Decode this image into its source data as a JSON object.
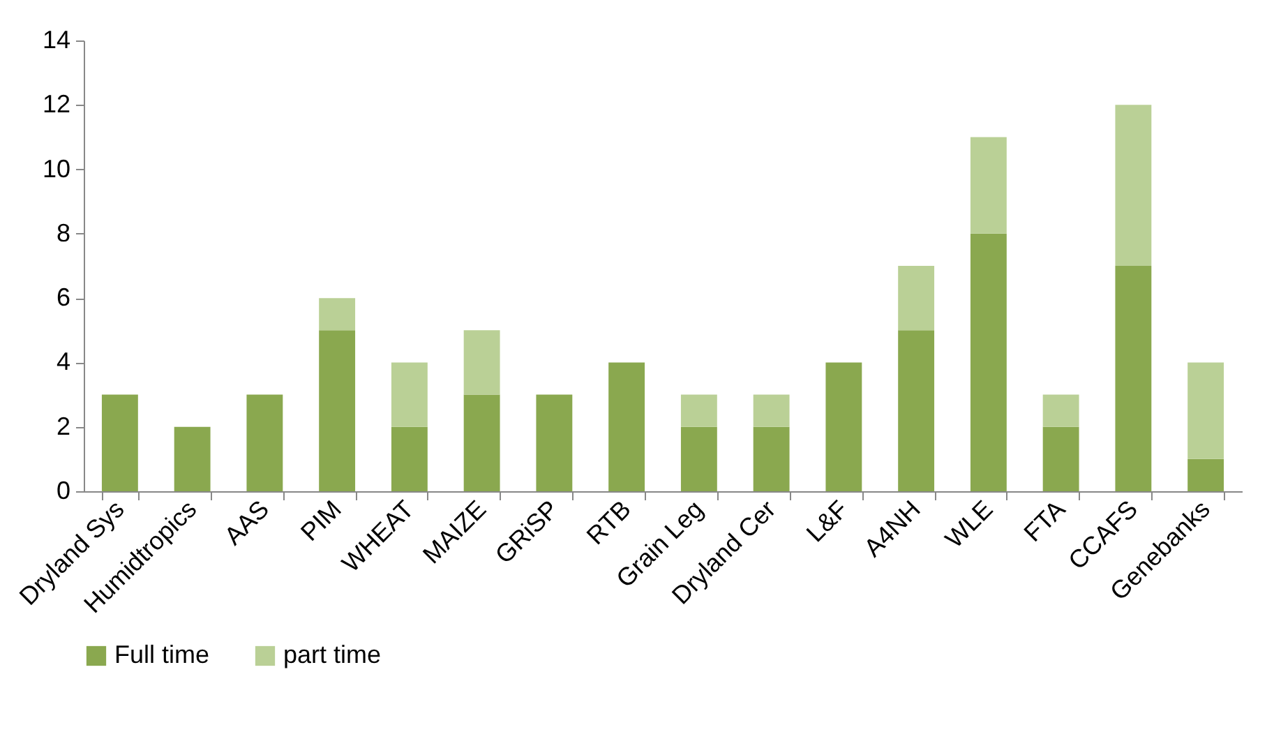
{
  "chart_data": {
    "type": "bar",
    "stacked": true,
    "categories": [
      "Dryland Sys",
      "Humidtropics",
      "AAS",
      "PIM",
      "WHEAT",
      "MAIZE",
      "GRiSP",
      "RTB",
      "Grain Leg",
      "Dryland Cer",
      "L&F",
      "A4NH",
      "WLE",
      "FTA",
      "CCAFS",
      "Genebanks"
    ],
    "series": [
      {
        "name": "Full time",
        "color": "#8aa84f",
        "values": [
          3,
          2,
          3,
          5,
          2,
          3,
          3,
          4,
          2,
          2,
          4,
          5,
          8,
          2,
          7,
          1
        ]
      },
      {
        "name": "part time",
        "color": "#bad096",
        "values": [
          0,
          0,
          0,
          1,
          2,
          2,
          0,
          0,
          1,
          1,
          0,
          2,
          3,
          1,
          5,
          3
        ]
      }
    ],
    "ylim": [
      0,
      14
    ],
    "yticks": [
      0,
      2,
      4,
      6,
      8,
      10,
      12,
      14
    ],
    "grid": false,
    "legend": "bottom"
  }
}
